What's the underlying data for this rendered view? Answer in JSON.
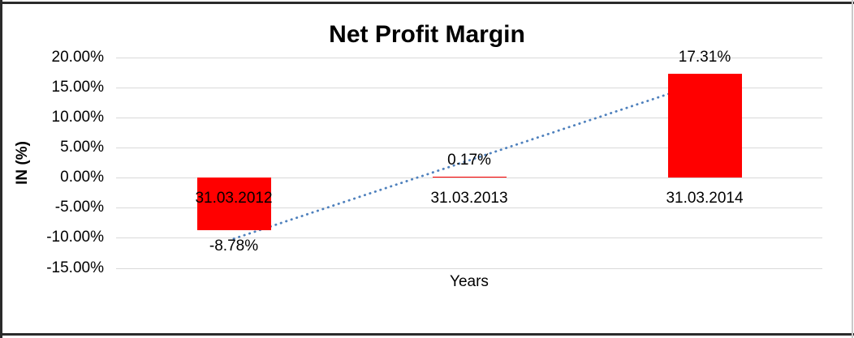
{
  "chart_data": {
    "type": "bar",
    "title": "Net Profit Margin",
    "xlabel": "Years",
    "ylabel": "IN (%)",
    "categories": [
      "31.03.2012",
      "31.03.2013",
      "31.03.2014"
    ],
    "values": [
      -8.78,
      0.17,
      17.31
    ],
    "data_labels": [
      "-8.78%",
      "0.17%",
      "17.31%"
    ],
    "y_ticks": [
      {
        "value": 20,
        "label": "20.00%"
      },
      {
        "value": 15,
        "label": "15.00%"
      },
      {
        "value": 10,
        "label": "10.00%"
      },
      {
        "value": 5,
        "label": "5.00%"
      },
      {
        "value": 0,
        "label": "0.00%"
      },
      {
        "value": -5,
        "label": "-5.00%"
      },
      {
        "value": -10,
        "label": "-10.00%"
      },
      {
        "value": -15,
        "label": "-15.00%"
      }
    ],
    "ylim": [
      -15,
      20
    ],
    "grid": true,
    "legend": false,
    "colors": {
      "bar": "#FF0000",
      "gridline": "#D9D9D9",
      "trendline": "#4F81BD",
      "text": "#000000",
      "background": "#FFFFFF"
    },
    "trendline": {
      "type": "linear",
      "style": "dotted"
    }
  }
}
